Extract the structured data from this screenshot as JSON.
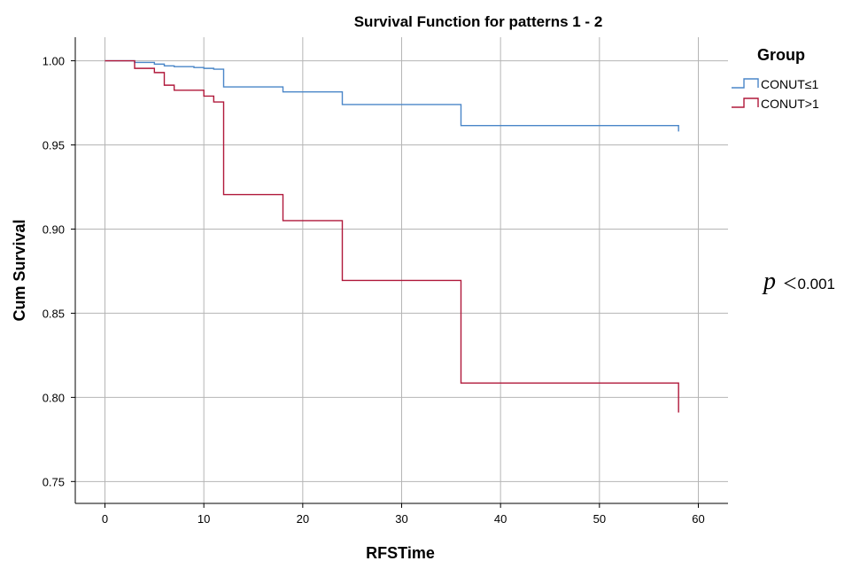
{
  "chart_data": {
    "type": "line",
    "step": true,
    "title": "Survival Function for patterns 1 - 2",
    "xlabel": "RFSTime",
    "ylabel": "Cum Survival",
    "xlim": [
      -3,
      63
    ],
    "ylim": [
      0.737,
      1.014
    ],
    "xticks": [
      0,
      10,
      20,
      30,
      40,
      50,
      60
    ],
    "yticks": [
      0.75,
      0.8,
      0.85,
      0.9,
      0.95,
      1.0
    ],
    "xtick_labels": [
      "0",
      "10",
      "20",
      "30",
      "40",
      "50",
      "60"
    ],
    "ytick_labels": [
      "0.75",
      "0.80",
      "0.85",
      "0.90",
      "0.95",
      "1.00"
    ],
    "grid": true,
    "legend": {
      "title": "Group",
      "placement": "top-right outside"
    },
    "series": [
      {
        "name": "CONUT≤1",
        "color": "#4a86c8",
        "x": [
          0,
          3,
          5,
          6,
          7,
          9,
          10,
          11,
          12,
          18,
          24,
          36,
          58
        ],
        "y": [
          1.0,
          0.999,
          0.998,
          0.997,
          0.9965,
          0.996,
          0.9955,
          0.995,
          0.9845,
          0.9815,
          0.974,
          0.9615,
          0.958
        ]
      },
      {
        "name": "CONUT>1",
        "color": "#b0183a",
        "x": [
          0,
          3,
          5,
          6,
          7,
          10,
          11,
          12,
          18,
          24,
          36,
          58
        ],
        "y": [
          1.0,
          0.9955,
          0.993,
          0.9855,
          0.9825,
          0.979,
          0.9755,
          0.9205,
          0.905,
          0.8695,
          0.8085,
          0.791
        ]
      }
    ],
    "annotation": {
      "p_symbol": "p",
      "text": "＜0.001"
    }
  }
}
